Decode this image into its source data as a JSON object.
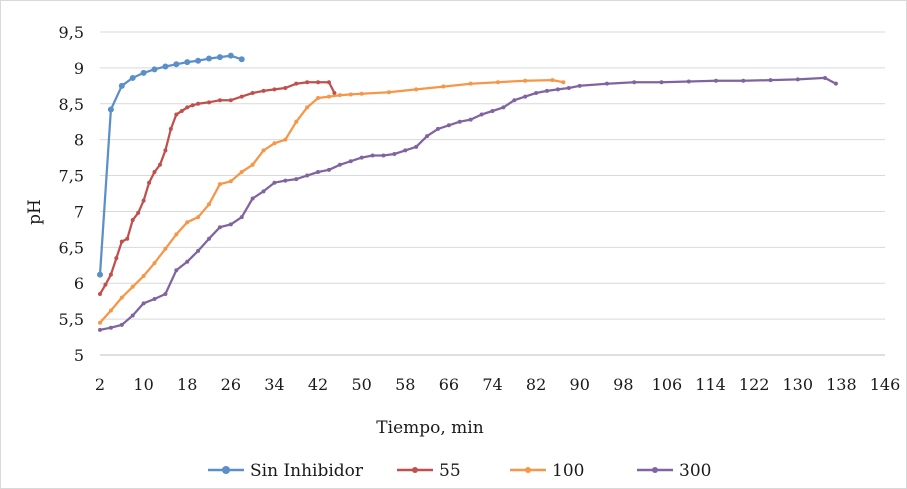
{
  "chart_data": {
    "type": "line",
    "title": "",
    "xlabel": "Tiempo, min",
    "ylabel": "pH",
    "xlim": [
      2,
      146
    ],
    "ylim": [
      5,
      9.5
    ],
    "xticks": [
      2,
      10,
      18,
      26,
      34,
      42,
      50,
      58,
      66,
      74,
      82,
      90,
      98,
      106,
      114,
      122,
      130,
      138,
      146
    ],
    "yticks": [
      5,
      5.5,
      6,
      6.5,
      7,
      7.5,
      8,
      8.5,
      9,
      9.5
    ],
    "ytick_labels": [
      "5",
      "5,5",
      "6",
      "6,5",
      "7",
      "7,5",
      "8",
      "8,5",
      "9",
      "9,5"
    ],
    "grid": true,
    "legend_position": "bottom",
    "series": [
      {
        "name": "Sin Inhibidor",
        "color": "#5b8fc9",
        "marker_size": 3,
        "x": [
          2,
          4,
          6,
          8,
          10,
          12,
          14,
          16,
          18,
          20,
          22,
          24,
          26,
          28
        ],
        "y": [
          6.12,
          8.42,
          8.75,
          8.86,
          8.93,
          8.98,
          9.02,
          9.05,
          9.08,
          9.1,
          9.13,
          9.15,
          9.17,
          9.12
        ]
      },
      {
        "name": "55",
        "color": "#c0504d",
        "marker_size": 2,
        "x": [
          2,
          3,
          4,
          5,
          6,
          7,
          8,
          9,
          10,
          11,
          12,
          13,
          14,
          15,
          16,
          17,
          18,
          19,
          20,
          22,
          24,
          26,
          28,
          30,
          32,
          34,
          36,
          38,
          40,
          42,
          44,
          45
        ],
        "y": [
          5.85,
          5.98,
          6.12,
          6.35,
          6.58,
          6.62,
          6.88,
          6.98,
          7.15,
          7.4,
          7.55,
          7.65,
          7.85,
          8.15,
          8.35,
          8.4,
          8.45,
          8.48,
          8.5,
          8.52,
          8.55,
          8.55,
          8.6,
          8.65,
          8.68,
          8.7,
          8.72,
          8.78,
          8.8,
          8.8,
          8.8,
          8.65
        ]
      },
      {
        "name": "100",
        "color": "#f79646",
        "marker_size": 2,
        "x": [
          2,
          4,
          6,
          8,
          10,
          12,
          14,
          16,
          18,
          20,
          22,
          24,
          26,
          28,
          30,
          32,
          34,
          36,
          38,
          40,
          42,
          44,
          46,
          48,
          50,
          55,
          60,
          65,
          70,
          75,
          80,
          85,
          87
        ],
        "y": [
          5.45,
          5.62,
          5.8,
          5.95,
          6.1,
          6.28,
          6.48,
          6.68,
          6.85,
          6.92,
          7.1,
          7.38,
          7.42,
          7.55,
          7.65,
          7.85,
          7.95,
          8.0,
          8.25,
          8.45,
          8.58,
          8.6,
          8.62,
          8.63,
          8.64,
          8.66,
          8.7,
          8.74,
          8.78,
          8.8,
          8.82,
          8.83,
          8.8
        ]
      },
      {
        "name": "300",
        "color": "#8064a2",
        "marker_size": 2,
        "x": [
          2,
          4,
          6,
          8,
          10,
          12,
          14,
          16,
          18,
          20,
          22,
          24,
          26,
          28,
          30,
          32,
          34,
          36,
          38,
          40,
          42,
          44,
          46,
          48,
          50,
          52,
          54,
          56,
          58,
          60,
          62,
          64,
          66,
          68,
          70,
          72,
          74,
          76,
          78,
          80,
          82,
          84,
          86,
          88,
          90,
          95,
          100,
          105,
          110,
          115,
          120,
          125,
          130,
          135,
          137
        ],
        "y": [
          5.35,
          5.38,
          5.42,
          5.55,
          5.72,
          5.78,
          5.85,
          6.18,
          6.3,
          6.45,
          6.62,
          6.78,
          6.82,
          6.92,
          7.18,
          7.28,
          7.4,
          7.43,
          7.45,
          7.5,
          7.55,
          7.58,
          7.65,
          7.7,
          7.75,
          7.78,
          7.78,
          7.8,
          7.85,
          7.9,
          8.05,
          8.15,
          8.2,
          8.25,
          8.28,
          8.35,
          8.4,
          8.45,
          8.55,
          8.6,
          8.65,
          8.68,
          8.7,
          8.72,
          8.75,
          8.78,
          8.8,
          8.8,
          8.81,
          8.82,
          8.82,
          8.83,
          8.84,
          8.86,
          8.78
        ]
      }
    ]
  }
}
